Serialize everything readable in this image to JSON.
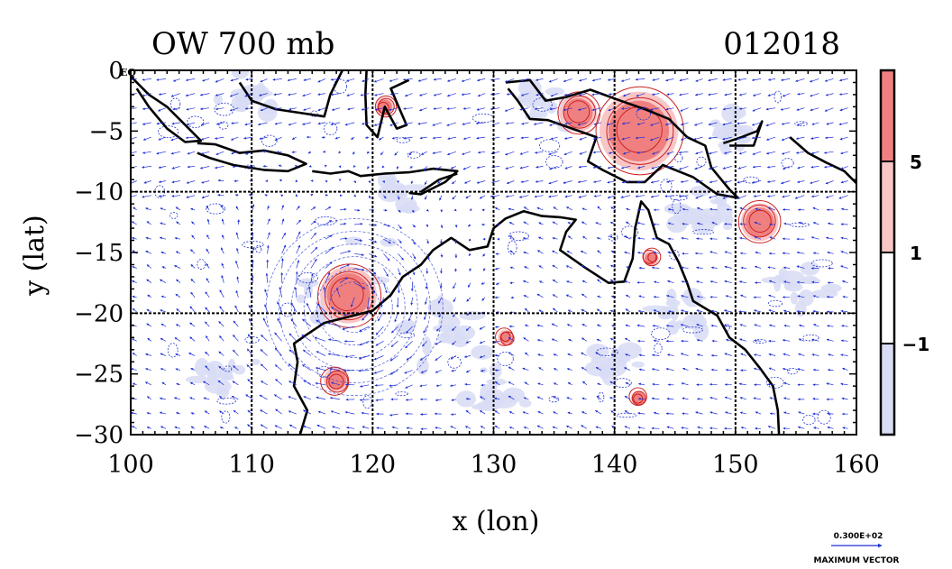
{
  "chart_data": {
    "type": "heatmap",
    "title_left": "OW 700 mb",
    "title_right": "012018",
    "xlabel": "x (lon)",
    "ylabel": "y (lat)",
    "xlim": [
      100,
      160
    ],
    "ylim": [
      -30,
      0
    ],
    "x_ticks": [
      100,
      110,
      120,
      130,
      140,
      150,
      160
    ],
    "x_tick_labels": [
      "100",
      "110",
      "120",
      "130",
      "140",
      "150",
      "160"
    ],
    "y_ticks": [
      0,
      -5,
      -10,
      -15,
      -20,
      -25,
      -30
    ],
    "y_tick_labels": [
      "0",
      "−5",
      "−10",
      "−15",
      "−20",
      "−25",
      "−30"
    ],
    "y_zero_suffix": "EQ",
    "grid": true,
    "colorbar": {
      "labels": [
        "5",
        "1",
        "−1"
      ],
      "levels": [
        5,
        1,
        -1
      ],
      "colors": {
        "strong_positive": "#f08080",
        "positive": "#f9c6c6",
        "neutral": "#ffffff",
        "negative": "#d8dcf4"
      }
    },
    "vector_key": {
      "value_label": "0.300E+02",
      "caption": "MAXIMUM VECTOR",
      "color": "#1f2fd6"
    },
    "features": {
      "cyclone_center": [
        118,
        -18.5
      ],
      "strong_positive_regions": [
        {
          "lon": 118,
          "lat": -18.5,
          "r": 1.8
        },
        {
          "lon": 142,
          "lat": -5,
          "r": 2.5
        },
        {
          "lon": 137,
          "lat": -3.5,
          "r": 1.2
        },
        {
          "lon": 121,
          "lat": -3,
          "r": 0.6
        },
        {
          "lon": 152,
          "lat": -12.5,
          "r": 1.2
        },
        {
          "lon": 117,
          "lat": -25.5,
          "r": 0.8
        },
        {
          "lon": 143,
          "lat": -15.5,
          "r": 0.5
        },
        {
          "lon": 131,
          "lat": -22,
          "r": 0.5
        },
        {
          "lon": 142,
          "lat": -27,
          "r": 0.5
        }
      ]
    },
    "vector_color": "#1f2fd6",
    "coast_color": "#000000",
    "contour_positive_color": "#cc2222",
    "contour_negative_color": "#2233cc"
  }
}
